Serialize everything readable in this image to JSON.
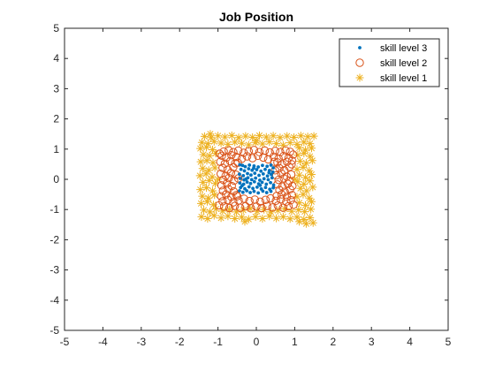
{
  "chart_data": {
    "type": "scatter",
    "title": "Job Position",
    "xlabel": "",
    "ylabel": "",
    "xlim": [
      -5,
      5
    ],
    "ylim": [
      -5,
      5
    ],
    "xticks": [
      -5,
      -4,
      -3,
      -2,
      -1,
      0,
      1,
      2,
      3,
      4,
      5
    ],
    "yticks": [
      -5,
      -4,
      -3,
      -2,
      -1,
      0,
      1,
      2,
      3,
      4,
      5
    ],
    "grid": false,
    "legend_position": "top-right",
    "series": [
      {
        "name": "skill level 3",
        "marker": "dot",
        "color": "#0072BD",
        "points": [
          [
            -0.43,
            0.48
          ],
          [
            -0.36,
            0.46
          ],
          [
            -0.29,
            0.42
          ],
          [
            -0.18,
            0.47
          ],
          [
            -0.06,
            0.44
          ],
          [
            0.05,
            0.41
          ],
          [
            0.16,
            0.46
          ],
          [
            0.28,
            0.43
          ],
          [
            0.38,
            0.47
          ],
          [
            0.44,
            0.38
          ],
          [
            -0.4,
            0.33
          ],
          [
            -0.31,
            0.28
          ],
          [
            -0.2,
            0.35
          ],
          [
            -0.11,
            0.3
          ],
          [
            0.01,
            0.32
          ],
          [
            0.12,
            0.27
          ],
          [
            0.23,
            0.33
          ],
          [
            0.34,
            0.29
          ],
          [
            0.43,
            0.24
          ],
          [
            -0.44,
            0.17
          ],
          [
            -0.34,
            0.12
          ],
          [
            -0.23,
            0.19
          ],
          [
            -0.14,
            0.14
          ],
          [
            -0.04,
            0.2
          ],
          [
            0.07,
            0.13
          ],
          [
            0.18,
            0.18
          ],
          [
            0.29,
            0.11
          ],
          [
            0.39,
            0.16
          ],
          [
            -0.42,
            0.03
          ],
          [
            -0.32,
            -0.02
          ],
          [
            -0.22,
            0.05
          ],
          [
            -0.12,
            -0.01
          ],
          [
            -0.02,
            0.04
          ],
          [
            0.09,
            -0.03
          ],
          [
            0.2,
            0.02
          ],
          [
            0.31,
            -0.01
          ],
          [
            0.41,
            0.05
          ],
          [
            -0.43,
            -0.12
          ],
          [
            -0.33,
            -0.16
          ],
          [
            -0.24,
            -0.09
          ],
          [
            -0.15,
            -0.14
          ],
          [
            -0.05,
            -0.08
          ],
          [
            0.06,
            -0.15
          ],
          [
            0.15,
            -0.1
          ],
          [
            0.26,
            -0.16
          ],
          [
            0.37,
            -0.11
          ],
          [
            0.45,
            -0.19
          ],
          [
            -0.41,
            -0.27
          ],
          [
            -0.3,
            -0.31
          ],
          [
            -0.19,
            -0.25
          ],
          [
            -0.09,
            -0.3
          ],
          [
            0.02,
            -0.26
          ],
          [
            0.13,
            -0.32
          ],
          [
            0.24,
            -0.27
          ],
          [
            0.35,
            -0.33
          ],
          [
            0.44,
            -0.28
          ],
          [
            -0.44,
            -0.38
          ],
          [
            -0.35,
            -0.43
          ],
          [
            -0.25,
            -0.38
          ],
          [
            -0.16,
            -0.44
          ],
          [
            -0.06,
            -0.4
          ],
          [
            0.05,
            -0.45
          ],
          [
            0.17,
            -0.39
          ],
          [
            0.27,
            -0.44
          ],
          [
            0.38,
            -0.4
          ],
          [
            -0.27,
            0.01
          ],
          [
            0.33,
            0.22
          ],
          [
            -0.07,
            0.37
          ],
          [
            0.1,
            -0.2
          ],
          [
            -0.37,
            -0.21
          ]
        ]
      },
      {
        "name": "skill level 2",
        "marker": "circle",
        "color": "#D95319",
        "points": [
          [
            -0.85,
            0.92
          ],
          [
            -0.72,
            0.96
          ],
          [
            -0.6,
            0.9
          ],
          [
            -0.47,
            0.95
          ],
          [
            -0.33,
            0.88
          ],
          [
            -0.2,
            0.93
          ],
          [
            -0.06,
            0.97
          ],
          [
            0.08,
            0.9
          ],
          [
            0.22,
            0.95
          ],
          [
            0.35,
            0.89
          ],
          [
            0.49,
            0.94
          ],
          [
            0.62,
            0.9
          ],
          [
            0.76,
            0.96
          ],
          [
            0.88,
            0.91
          ],
          [
            -0.9,
            0.78
          ],
          [
            -0.78,
            0.72
          ],
          [
            -0.65,
            0.8
          ],
          [
            -0.52,
            0.74
          ],
          [
            -0.38,
            0.68
          ],
          [
            -0.24,
            0.76
          ],
          [
            -0.1,
            0.7
          ],
          [
            0.04,
            0.78
          ],
          [
            0.18,
            0.72
          ],
          [
            0.31,
            0.66
          ],
          [
            0.45,
            0.75
          ],
          [
            0.58,
            0.69
          ],
          [
            0.71,
            0.77
          ],
          [
            0.84,
            0.71
          ],
          [
            0.93,
            0.62
          ],
          [
            -0.94,
            0.58
          ],
          [
            -0.82,
            0.52
          ],
          [
            -0.68,
            0.6
          ],
          [
            -0.55,
            0.53
          ],
          [
            0.55,
            0.56
          ],
          [
            0.67,
            0.5
          ],
          [
            0.8,
            0.58
          ],
          [
            0.92,
            0.5
          ],
          [
            -0.88,
            0.38
          ],
          [
            -0.75,
            0.32
          ],
          [
            -0.6,
            0.4
          ],
          [
            0.6,
            0.37
          ],
          [
            0.73,
            0.3
          ],
          [
            0.86,
            0.41
          ],
          [
            -0.93,
            0.18
          ],
          [
            -0.8,
            0.12
          ],
          [
            -0.66,
            0.21
          ],
          [
            -0.53,
            0.15
          ],
          [
            0.52,
            0.13
          ],
          [
            0.65,
            0.2
          ],
          [
            0.79,
            0.09
          ],
          [
            0.91,
            0.16
          ],
          [
            -0.86,
            -0.02
          ],
          [
            -0.72,
            0.04
          ],
          [
            -0.58,
            -0.04
          ],
          [
            0.58,
            -0.02
          ],
          [
            0.72,
            0.03
          ],
          [
            0.86,
            -0.05
          ],
          [
            -0.91,
            -0.2
          ],
          [
            -0.77,
            -0.14
          ],
          [
            -0.64,
            -0.22
          ],
          [
            0.55,
            -0.17
          ],
          [
            0.68,
            -0.24
          ],
          [
            0.82,
            -0.15
          ],
          [
            0.94,
            -0.22
          ],
          [
            -0.87,
            -0.38
          ],
          [
            -0.73,
            -0.32
          ],
          [
            -0.59,
            -0.4
          ],
          [
            0.6,
            -0.35
          ],
          [
            0.74,
            -0.41
          ],
          [
            0.88,
            -0.33
          ],
          [
            -0.92,
            -0.56
          ],
          [
            -0.79,
            -0.5
          ],
          [
            -0.65,
            -0.58
          ],
          [
            -0.52,
            -0.52
          ],
          [
            0.53,
            -0.55
          ],
          [
            0.66,
            -0.5
          ],
          [
            0.8,
            -0.58
          ],
          [
            0.93,
            -0.52
          ],
          [
            -0.88,
            -0.73
          ],
          [
            -0.74,
            -0.68
          ],
          [
            -0.6,
            -0.76
          ],
          [
            -0.46,
            -0.7
          ],
          [
            -0.32,
            -0.64
          ],
          [
            -0.18,
            -0.72
          ],
          [
            -0.04,
            -0.67
          ],
          [
            0.1,
            -0.74
          ],
          [
            0.24,
            -0.68
          ],
          [
            0.37,
            -0.63
          ],
          [
            0.51,
            -0.71
          ],
          [
            0.64,
            -0.66
          ],
          [
            0.78,
            -0.74
          ],
          [
            0.9,
            -0.69
          ],
          [
            -0.84,
            -0.9
          ],
          [
            -0.7,
            -0.95
          ],
          [
            -0.56,
            -0.88
          ],
          [
            -0.42,
            -0.94
          ],
          [
            -0.28,
            -0.89
          ],
          [
            -0.14,
            -0.96
          ],
          [
            0.0,
            -0.9
          ],
          [
            0.14,
            -0.95
          ],
          [
            0.28,
            -0.88
          ],
          [
            0.42,
            -0.93
          ],
          [
            0.56,
            -0.87
          ],
          [
            0.7,
            -0.94
          ],
          [
            0.84,
            -0.89
          ],
          [
            -0.96,
            0.85
          ],
          [
            0.96,
            0.82
          ],
          [
            -0.97,
            -0.86
          ],
          [
            0.97,
            -0.84
          ],
          [
            -0.48,
            0.55
          ],
          [
            0.47,
            0.58
          ],
          [
            -0.5,
            -0.56
          ],
          [
            0.49,
            0.3
          ],
          [
            -0.47,
            0.03
          ]
        ]
      },
      {
        "name": "skill level 1",
        "marker": "star",
        "color": "#EDB120",
        "points": [
          [
            -1.35,
            1.42
          ],
          [
            -1.18,
            1.38
          ],
          [
            -1.0,
            1.44
          ],
          [
            -0.82,
            1.4
          ],
          [
            -0.64,
            1.45
          ],
          [
            -0.46,
            1.38
          ],
          [
            -0.28,
            1.43
          ],
          [
            -0.1,
            1.39
          ],
          [
            0.08,
            1.45
          ],
          [
            0.26,
            1.4
          ],
          [
            0.44,
            1.44
          ],
          [
            0.62,
            1.38
          ],
          [
            0.8,
            1.43
          ],
          [
            0.98,
            1.39
          ],
          [
            1.16,
            1.44
          ],
          [
            1.34,
            1.41
          ],
          [
            1.5,
            1.43
          ],
          [
            -1.42,
            1.22
          ],
          [
            -1.26,
            1.18
          ],
          [
            -1.1,
            1.25
          ],
          [
            -0.92,
            1.2
          ],
          [
            -0.74,
            1.16
          ],
          [
            -0.56,
            1.23
          ],
          [
            -0.38,
            1.19
          ],
          [
            -0.2,
            1.14
          ],
          [
            -0.02,
            1.22
          ],
          [
            0.16,
            1.17
          ],
          [
            0.34,
            1.24
          ],
          [
            0.52,
            1.18
          ],
          [
            0.7,
            1.13
          ],
          [
            0.88,
            1.21
          ],
          [
            1.06,
            1.16
          ],
          [
            1.24,
            1.23
          ],
          [
            1.4,
            1.18
          ],
          [
            -1.46,
            1.02
          ],
          [
            -1.3,
            1.06
          ],
          [
            -1.14,
            0.98
          ],
          [
            1.12,
            1.04
          ],
          [
            1.28,
            0.97
          ],
          [
            1.44,
            1.03
          ],
          [
            -1.38,
            0.82
          ],
          [
            -1.22,
            0.78
          ],
          [
            -1.06,
            0.86
          ],
          [
            1.08,
            0.8
          ],
          [
            1.24,
            0.86
          ],
          [
            1.4,
            0.76
          ],
          [
            -1.45,
            0.58
          ],
          [
            -1.29,
            0.62
          ],
          [
            -1.13,
            0.55
          ],
          [
            1.14,
            0.6
          ],
          [
            1.3,
            0.54
          ],
          [
            1.46,
            0.62
          ],
          [
            -1.4,
            0.36
          ],
          [
            -1.24,
            0.3
          ],
          [
            -1.08,
            0.38
          ],
          [
            1.06,
            0.33
          ],
          [
            1.22,
            0.4
          ],
          [
            1.38,
            0.28
          ],
          [
            -1.47,
            0.12
          ],
          [
            -1.31,
            0.18
          ],
          [
            -1.15,
            0.08
          ],
          [
            1.12,
            0.14
          ],
          [
            1.28,
            0.06
          ],
          [
            1.44,
            0.16
          ],
          [
            -1.39,
            -0.1
          ],
          [
            -1.23,
            -0.04
          ],
          [
            -1.07,
            -0.14
          ],
          [
            1.08,
            -0.08
          ],
          [
            1.24,
            -0.16
          ],
          [
            1.4,
            -0.05
          ],
          [
            -1.46,
            -0.34
          ],
          [
            -1.3,
            -0.28
          ],
          [
            -1.14,
            -0.38
          ],
          [
            1.15,
            -0.3
          ],
          [
            1.31,
            -0.38
          ],
          [
            1.47,
            -0.26
          ],
          [
            -1.41,
            -0.56
          ],
          [
            -1.25,
            -0.62
          ],
          [
            -1.09,
            -0.52
          ],
          [
            1.06,
            -0.58
          ],
          [
            1.22,
            -0.5
          ],
          [
            1.38,
            -0.62
          ],
          [
            -1.44,
            -0.8
          ],
          [
            -1.28,
            -0.74
          ],
          [
            -1.12,
            -0.84
          ],
          [
            1.12,
            -0.78
          ],
          [
            1.28,
            -0.86
          ],
          [
            1.44,
            -0.74
          ],
          [
            -1.37,
            -1.02
          ],
          [
            -1.21,
            -1.08
          ],
          [
            -1.05,
            -0.98
          ],
          [
            -0.88,
            -1.05
          ],
          [
            -0.7,
            -1.0
          ],
          [
            -0.52,
            -1.08
          ],
          [
            -0.34,
            -1.02
          ],
          [
            -0.16,
            -0.97
          ],
          [
            0.02,
            -1.06
          ],
          [
            0.2,
            -1.0
          ],
          [
            0.38,
            -1.08
          ],
          [
            0.56,
            -1.03
          ],
          [
            0.74,
            -0.98
          ],
          [
            0.92,
            -1.06
          ],
          [
            1.1,
            -1.01
          ],
          [
            1.26,
            -1.07
          ],
          [
            1.42,
            -0.99
          ],
          [
            -1.43,
            -1.24
          ],
          [
            -1.27,
            -1.3
          ],
          [
            -1.1,
            -1.2
          ],
          [
            -0.92,
            -1.28
          ],
          [
            -0.74,
            -1.22
          ],
          [
            -0.56,
            -1.3
          ],
          [
            -0.38,
            -1.25
          ],
          [
            -0.2,
            -1.32
          ],
          [
            -0.02,
            -1.24
          ],
          [
            0.16,
            -1.3
          ],
          [
            0.34,
            -1.22
          ],
          [
            0.52,
            -1.29
          ],
          [
            0.7,
            -1.24
          ],
          [
            0.88,
            -1.31
          ],
          [
            1.06,
            -1.25
          ],
          [
            1.24,
            -1.33
          ],
          [
            1.4,
            -1.27
          ],
          [
            1.48,
            -1.44
          ],
          [
            1.3,
            -1.47
          ],
          [
            1.12,
            -1.4
          ],
          [
            -0.3,
            -1.4
          ],
          [
            -1.2,
            1.5
          ],
          [
            0.0,
            1.28
          ],
          [
            -1.0,
            0.0
          ],
          [
            1.0,
            0.0
          ]
        ]
      }
    ]
  }
}
